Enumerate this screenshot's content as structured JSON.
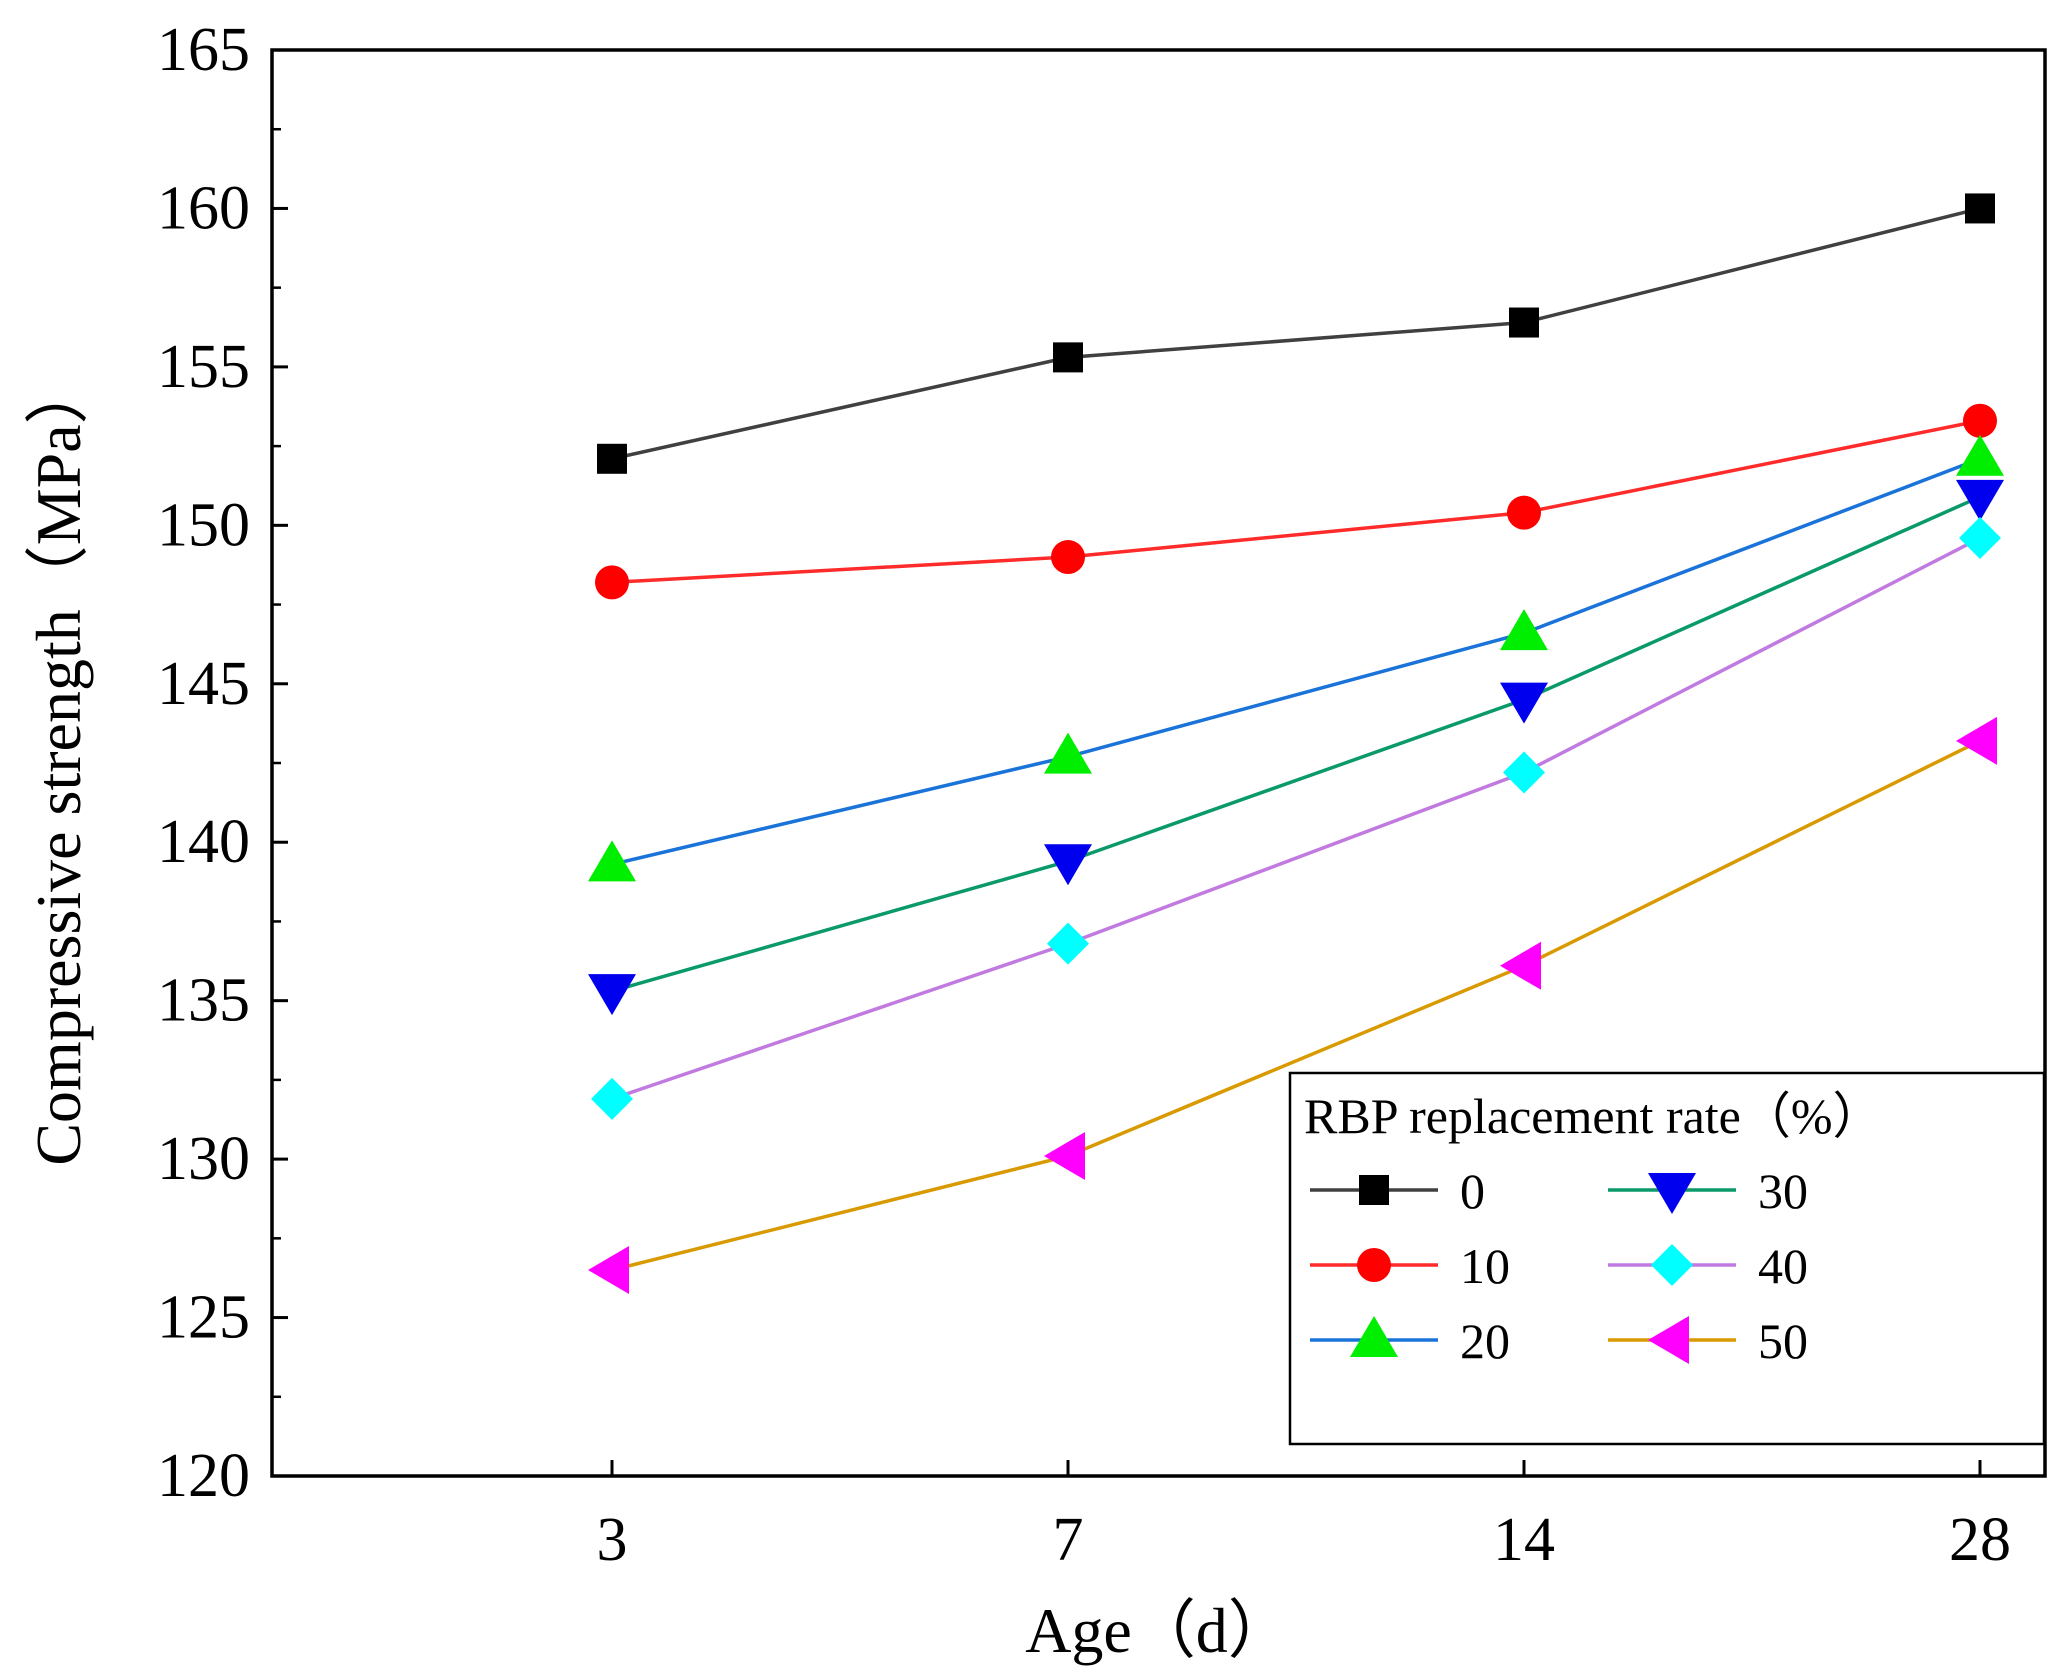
{
  "chart_data": {
    "type": "line",
    "title": "",
    "xlabel": "Age（d）",
    "ylabel": "Compressive strength（MPa）",
    "categories": [
      "3",
      "7",
      "14",
      "28"
    ],
    "ylim": [
      120,
      165
    ],
    "yticks": [
      "120",
      "125",
      "130",
      "135",
      "140",
      "145",
      "150",
      "155",
      "160",
      "165"
    ],
    "grid": false,
    "legend": {
      "title": "RBP replacement rate（%）",
      "position": "bottom-right",
      "columns": 2
    },
    "series": [
      {
        "name": "0",
        "values": [
          152.1,
          155.3,
          156.4,
          160.0
        ],
        "line_color": "#404040",
        "marker_color": "#000000",
        "marker": "square"
      },
      {
        "name": "10",
        "values": [
          148.2,
          149.0,
          150.4,
          153.3
        ],
        "line_color": "#ff2a2a",
        "marker_color": "#ff0000",
        "marker": "circle"
      },
      {
        "name": "20",
        "values": [
          139.3,
          142.7,
          146.6,
          152.1
        ],
        "line_color": "#1a73d9",
        "marker_color": "#00ee00",
        "marker": "triangle-up"
      },
      {
        "name": "30",
        "values": [
          135.3,
          139.4,
          144.5,
          150.9
        ],
        "line_color": "#0a9a6a",
        "marker_color": "#0000ee",
        "marker": "triangle-down"
      },
      {
        "name": "40",
        "values": [
          131.9,
          136.8,
          142.2,
          149.6
        ],
        "line_color": "#c07ae0",
        "marker_color": "#00ffff",
        "marker": "diamond"
      },
      {
        "name": "50",
        "values": [
          126.5,
          130.1,
          136.1,
          143.2
        ],
        "line_color": "#d89a00",
        "marker_color": "#ff00ff",
        "marker": "triangle-left"
      }
    ]
  }
}
